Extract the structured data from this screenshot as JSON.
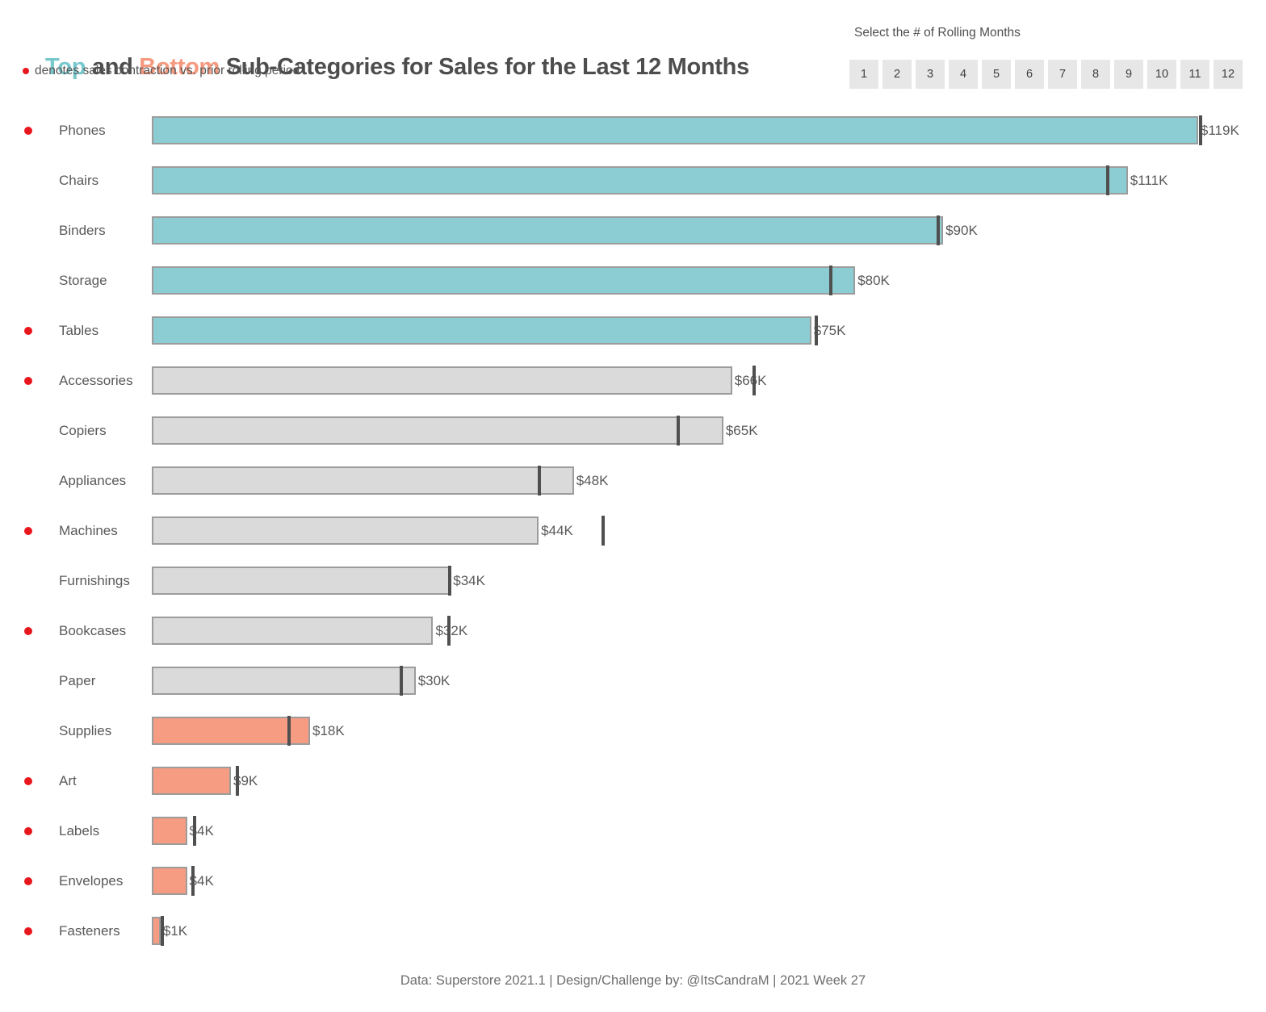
{
  "title": {
    "top": "Top",
    "and": " and ",
    "bottom": "Bottom",
    "rest": " Sub-Categories for Sales for the Last 12 Months"
  },
  "subtitle": {
    "text": "denotes sales contraction vs. prior rolling period"
  },
  "rolling_months": {
    "label": "Select the # of Rolling Months",
    "options": [
      "1",
      "2",
      "3",
      "4",
      "5",
      "6",
      "7",
      "8",
      "9",
      "10",
      "11",
      "12"
    ]
  },
  "footer": "Data: Superstore 2021.1 | Design/Challenge by: @ItsCandraM | 2021 Week 27",
  "colors": {
    "teal": "#8BCDD2",
    "gray": "#DADADA",
    "salmon": "#F59C83",
    "bar_border": "#9C9C9C",
    "tick": "#4F4F4F",
    "contraction_dot": "#E8171D",
    "title_teal": "#76C8CC",
    "title_salmon": "#F5997F",
    "title_dark": "#4D4D4D"
  },
  "chart_data": {
    "type": "bar",
    "orientation": "horizontal",
    "title": "Top and Bottom Sub-Categories for Sales for the Last 12 Months",
    "unit": "USD thousands",
    "x_axis_hidden": true,
    "xlim_k": [
      0,
      127
    ],
    "legend_note": "dot denotes sales contraction vs. prior rolling period; dark tick = prior rolling period sales",
    "rows": [
      {
        "category": "Phones",
        "value_k": 119,
        "value_label": "$119K",
        "prior_k": 119.3,
        "contraction": true,
        "group": "top"
      },
      {
        "category": "Chairs",
        "value_k": 111,
        "value_label": "$111K",
        "prior_k": 108.7,
        "contraction": false,
        "group": "top"
      },
      {
        "category": "Binders",
        "value_k": 90,
        "value_label": "$90K",
        "prior_k": 89.4,
        "contraction": false,
        "group": "top"
      },
      {
        "category": "Storage",
        "value_k": 80,
        "value_label": "$80K",
        "prior_k": 77.2,
        "contraction": false,
        "group": "top"
      },
      {
        "category": "Tables",
        "value_k": 75,
        "value_label": "$75K",
        "prior_k": 75.6,
        "contraction": true,
        "group": "top"
      },
      {
        "category": "Accessories",
        "value_k": 66,
        "value_label": "$66K",
        "prior_k": 68.5,
        "contraction": true,
        "group": "middle"
      },
      {
        "category": "Copiers",
        "value_k": 65,
        "value_label": "$65K",
        "prior_k": 59.9,
        "contraction": false,
        "group": "middle"
      },
      {
        "category": "Appliances",
        "value_k": 48,
        "value_label": "$48K",
        "prior_k": 44.1,
        "contraction": false,
        "group": "middle"
      },
      {
        "category": "Machines",
        "value_k": 44,
        "value_label": "$44K",
        "prior_k": 51.3,
        "contraction": true,
        "group": "middle"
      },
      {
        "category": "Furnishings",
        "value_k": 34,
        "value_label": "$34K",
        "prior_k": 33.9,
        "contraction": false,
        "group": "middle"
      },
      {
        "category": "Bookcases",
        "value_k": 32,
        "value_label": "$32K",
        "prior_k": 33.8,
        "contraction": true,
        "group": "middle"
      },
      {
        "category": "Paper",
        "value_k": 30,
        "value_label": "$30K",
        "prior_k": 28.4,
        "contraction": false,
        "group": "middle"
      },
      {
        "category": "Supplies",
        "value_k": 18,
        "value_label": "$18K",
        "prior_k": 15.6,
        "contraction": false,
        "group": "bottom"
      },
      {
        "category": "Art",
        "value_k": 9,
        "value_label": "$9K",
        "prior_k": 9.7,
        "contraction": true,
        "group": "bottom"
      },
      {
        "category": "Labels",
        "value_k": 4,
        "value_label": "$4K",
        "prior_k": 4.9,
        "contraction": true,
        "group": "bottom"
      },
      {
        "category": "Envelopes",
        "value_k": 4,
        "value_label": "$4K",
        "prior_k": 4.7,
        "contraction": true,
        "group": "bottom"
      },
      {
        "category": "Fasteners",
        "value_k": 1,
        "value_label": "$1K",
        "prior_k": 1.2,
        "contraction": true,
        "group": "bottom"
      }
    ]
  }
}
